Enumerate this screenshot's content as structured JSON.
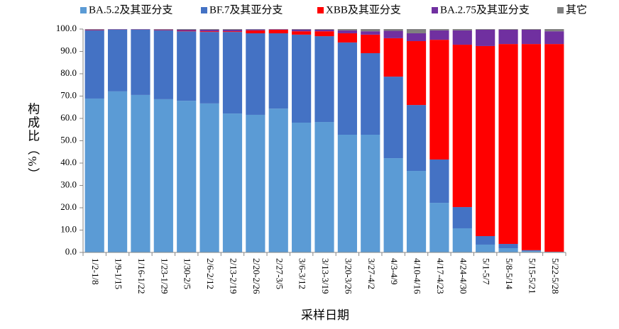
{
  "chart_data": {
    "type": "stacked_bar",
    "y_label": "构成比（%）",
    "x_label": "采样日期",
    "categories": [
      "1/2-1/8",
      "1/9-1/15",
      "1/16-1/22",
      "1/23-1/29",
      "1/30-2/5",
      "2/6-2/12",
      "2/13-2/19",
      "2/20-2/26",
      "2/27-3/5",
      "3/6-3/12",
      "3/13-3/19",
      "3/20-3/26",
      "3/27-4/2",
      "4/3-4/9",
      "4/10-4/16",
      "4/17-4/23",
      "4/24-4/30",
      "5/1-5/7",
      "5/8-5/14",
      "5/15-5/21",
      "5/22-5/28"
    ],
    "series": [
      {
        "name": "BA.5.2及其亚分支",
        "color": "#5b9bd5",
        "values": [
          68.9,
          72.1,
          70.5,
          68.6,
          67.9,
          66.7,
          62.2,
          61.6,
          64.4,
          58.1,
          58.4,
          52.7,
          52.7,
          42.2,
          36.5,
          22.2,
          10.8,
          3.5,
          1.9,
          0.6,
          0.3
        ]
      },
      {
        "name": "BF.7及其亚分支",
        "color": "#4472c4",
        "values": [
          30.5,
          27.6,
          29.2,
          30.8,
          31.1,
          32.0,
          36.5,
          36.5,
          33.7,
          39.4,
          38.4,
          41.3,
          36.5,
          36.5,
          29.5,
          19.4,
          9.5,
          3.8,
          1.9,
          0.4,
          0
        ]
      },
      {
        "name": "XBB及其亚分支",
        "color": "#ff0000",
        "values": [
          0.1,
          0,
          0,
          0.1,
          0.2,
          0.3,
          0.3,
          1.3,
          1.6,
          1.5,
          2.2,
          4.1,
          8.3,
          17.2,
          28.6,
          53.6,
          72.7,
          85.1,
          89.5,
          92.3,
          93.0
        ]
      },
      {
        "name": "BA.2.75及其亚分支",
        "color": "#7030a0",
        "values": [
          0.3,
          0.2,
          0.2,
          0.3,
          0.5,
          0.7,
          0.7,
          0.4,
          0.2,
          0.8,
          0.7,
          1.3,
          1.5,
          3.3,
          3.5,
          4.2,
          6.4,
          7.3,
          6.4,
          6.4,
          5.7
        ]
      },
      {
        "name": "其它",
        "color": "#808080",
        "values": [
          0.2,
          0.1,
          0.1,
          0.2,
          0.3,
          0.3,
          0.3,
          0.2,
          0.1,
          0.2,
          0.3,
          0.6,
          1.0,
          0.8,
          1.9,
          0.6,
          0.6,
          0.3,
          0.3,
          0.3,
          1.0
        ]
      }
    ],
    "ylim": [
      0,
      100
    ],
    "yticks": [
      {
        "value": 0,
        "label": "0.0"
      },
      {
        "value": 10,
        "label": "10.0"
      },
      {
        "value": 20,
        "label": "20.0"
      },
      {
        "value": 30,
        "label": "30.0"
      },
      {
        "value": 40,
        "label": "40.0"
      },
      {
        "value": 50,
        "label": "50.0"
      },
      {
        "value": 60,
        "label": "60.0"
      },
      {
        "value": 70,
        "label": "70.0"
      },
      {
        "value": 80,
        "label": "80.0"
      },
      {
        "value": 90,
        "label": "90.0"
      },
      {
        "value": 100,
        "label": "100.0"
      }
    ],
    "legend": "top"
  }
}
